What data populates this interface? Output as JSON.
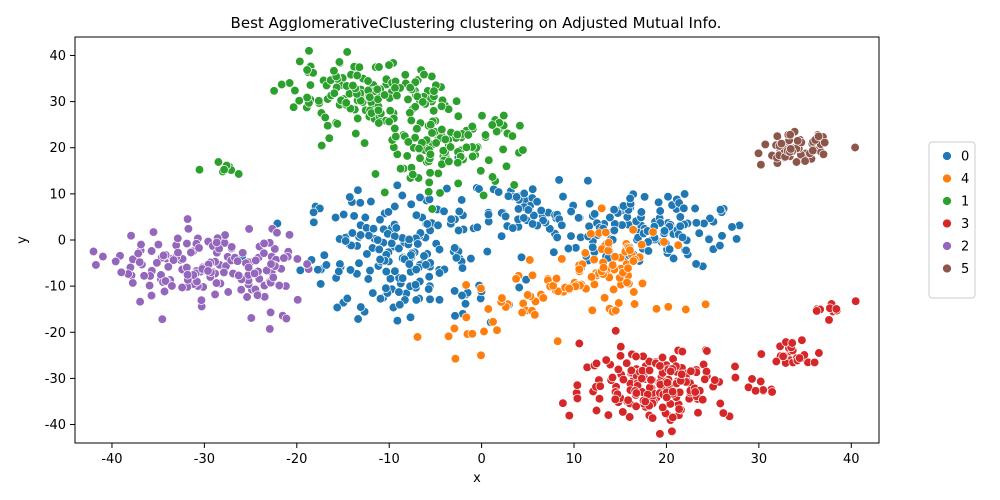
{
  "chart_data": {
    "type": "scatter",
    "title": "Best AgglomerativeClustering clustering on Adjusted Mutual Info.",
    "xlabel": "x",
    "ylabel": "y",
    "xlim": [
      -44,
      43
    ],
    "ylim": [
      -44,
      44
    ],
    "xticks": [
      -40,
      -30,
      -20,
      -10,
      0,
      10,
      20,
      30,
      40
    ],
    "yticks": [
      -40,
      -30,
      -20,
      -10,
      0,
      10,
      20,
      30,
      40
    ],
    "grid": false,
    "legend_position": "right",
    "series": [
      {
        "name": "0",
        "color": "#1f77b4",
        "clusters": [
          {
            "cx": -8,
            "cy": -3,
            "sx": 5.5,
            "sy": 7,
            "n": 200
          },
          {
            "cx": 17,
            "cy": 2,
            "sx": 4.5,
            "sy": 4,
            "n": 140
          },
          {
            "cx": 5,
            "cy": 6,
            "sx": 3,
            "sy": 3,
            "n": 50
          }
        ]
      },
      {
        "name": "4",
        "color": "#ff7f0e",
        "clusters": [
          {
            "cx": 14,
            "cy": -5,
            "sx": 2.5,
            "sy": 4,
            "n": 60
          },
          {
            "cx": 8,
            "cy": -10,
            "sx": 3,
            "sy": 2.5,
            "n": 25
          },
          {
            "cx": 2,
            "cy": -16,
            "sx": 4,
            "sy": 4,
            "n": 30
          },
          {
            "cx": 19,
            "cy": -14,
            "sx": 2,
            "sy": 1,
            "n": 6
          }
        ]
      },
      {
        "name": "1",
        "color": "#2ca02c",
        "clusters": [
          {
            "cx": -12,
            "cy": 31,
            "sx": 4.5,
            "sy": 3.5,
            "n": 150
          },
          {
            "cx": -4,
            "cy": 20,
            "sx": 4,
            "sy": 4,
            "n": 120
          },
          {
            "cx": -28,
            "cy": 15.5,
            "sx": 1.5,
            "sy": 0.8,
            "n": 8
          }
        ]
      },
      {
        "name": "3",
        "color": "#d62728",
        "clusters": [
          {
            "cx": 19,
            "cy": -31,
            "sx": 4,
            "sy": 4,
            "n": 180
          },
          {
            "cx": 34,
            "cy": -25,
            "sx": 2,
            "sy": 1.2,
            "n": 25
          },
          {
            "cx": 38,
            "cy": -15,
            "sx": 1,
            "sy": 1,
            "n": 10
          },
          {
            "cx": 30.5,
            "cy": -32,
            "sx": 0.6,
            "sy": 1.2,
            "n": 8
          }
        ]
      },
      {
        "name": "2",
        "color": "#9467bd",
        "clusters": [
          {
            "cx": -31,
            "cy": -6,
            "sx": 4.5,
            "sy": 4,
            "n": 130
          },
          {
            "cx": -23,
            "cy": -7,
            "sx": 2,
            "sy": 5,
            "n": 40
          }
        ]
      },
      {
        "name": "5",
        "color": "#8c564b",
        "clusters": [
          {
            "cx": 34,
            "cy": 19.5,
            "sx": 1.8,
            "sy": 1.6,
            "n": 60
          }
        ]
      }
    ]
  }
}
